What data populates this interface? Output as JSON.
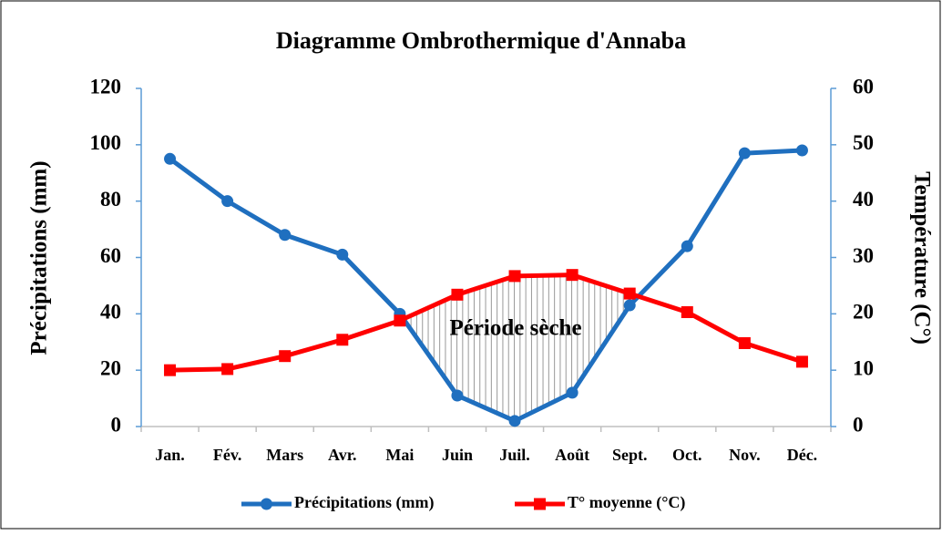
{
  "chart_data": {
    "type": "line",
    "title": "Diagramme Ombrothermique d'Annaba",
    "ylabel": "Précipitations (mm)",
    "y2label": "Température (C°)",
    "annotation": "Période sèche",
    "categories": [
      "Jan.",
      "Fév.",
      "Mars",
      "Avr.",
      "Mai",
      "Juin",
      "Juil.",
      "Août",
      "Sept.",
      "Oct.",
      "Nov.",
      "Déc."
    ],
    "series": [
      {
        "name": "Précipitations (mm)",
        "color": "#1f6fbf",
        "marker": "circle",
        "values": [
          95,
          80,
          68,
          61,
          40,
          11,
          2,
          12,
          43,
          64,
          97,
          98
        ]
      },
      {
        "name": "T° moyenne (°C)",
        "color": "#ff0000",
        "marker": "square",
        "axis": "y2",
        "values": [
          10,
          10.2,
          12.5,
          15.4,
          18.8,
          23.4,
          26.7,
          26.9,
          23.6,
          20.3,
          14.8,
          11.5
        ]
      }
    ],
    "ylim": [
      0,
      120
    ],
    "yticks": [
      0,
      20,
      40,
      60,
      80,
      100,
      120
    ],
    "y2lim": [
      0,
      60
    ],
    "y2ticks": [
      0,
      10,
      20,
      30,
      40,
      50,
      60
    ],
    "legend": "bottom",
    "grid": false
  }
}
